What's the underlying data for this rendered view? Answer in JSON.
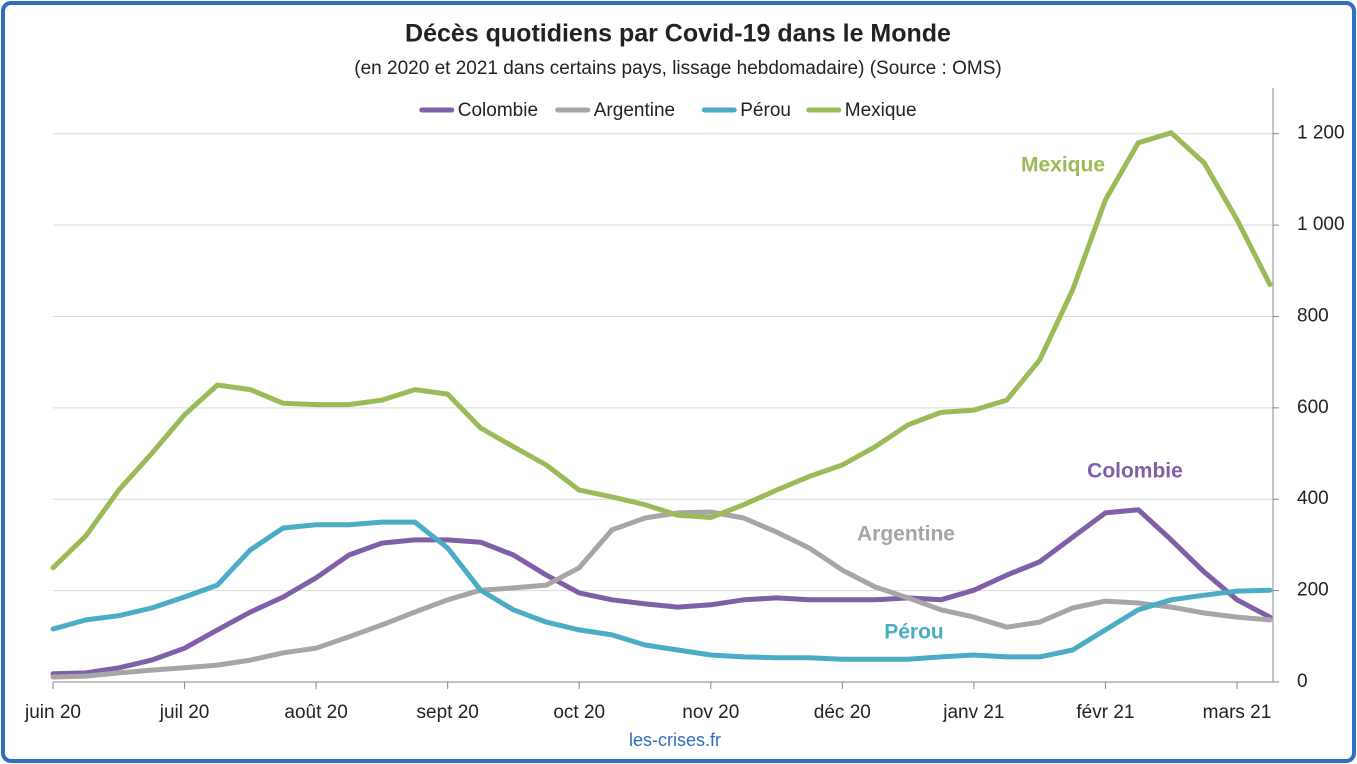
{
  "chart_data": {
    "type": "line",
    "title": "Décès quotidiens par Covid-19 dans le Monde",
    "subtitle": "(en 2020 et 2021 dans certains pays, lissage hebdomadaire) (Source : OMS)",
    "source": "les-crises.fr",
    "categories": [
      "juin 20",
      null,
      null,
      null,
      "juil 20",
      null,
      null,
      null,
      "août 20",
      null,
      null,
      null,
      "sept 20",
      null,
      null,
      null,
      "oct 20",
      null,
      null,
      null,
      "nov 20",
      null,
      null,
      null,
      "déc 20",
      null,
      null,
      null,
      "janv 21",
      null,
      null,
      null,
      "févr 21",
      null,
      null,
      null,
      "mars 21",
      null
    ],
    "ylim": [
      0,
      1300
    ],
    "yticks": [
      0,
      200,
      400,
      600,
      800,
      {
        "value": 1000,
        "label": "1 000"
      },
      {
        "value": 1200,
        "label": "1 200"
      }
    ],
    "y_axis_side": "right",
    "grid": true,
    "legend": "top",
    "series": [
      {
        "name": "Colombie",
        "color": "#7f5fa8",
        "values": [
          18,
          20,
          31,
          48,
          74,
          114,
          153,
          186,
          228,
          278,
          304,
          311,
          311,
          306,
          278,
          234,
          195,
          180,
          171,
          164,
          169,
          180,
          184,
          180,
          180,
          180,
          184,
          180,
          201,
          234,
          263,
          317,
          370,
          377,
          311,
          241,
          180,
          142
        ]
      },
      {
        "name": "Argentine",
        "color": "#a6a6a6",
        "values": [
          11,
          13,
          20,
          26,
          31,
          37,
          48,
          64,
          74,
          99,
          125,
          153,
          180,
          201,
          206,
          212,
          250,
          333,
          359,
          370,
          372,
          359,
          328,
          293,
          245,
          208,
          184,
          158,
          142,
          120,
          131,
          162,
          177,
          173,
          164,
          151,
          142,
          136
        ]
      },
      {
        "name": "Pérou",
        "color": "#4bacc6",
        "values": [
          116,
          136,
          145,
          162,
          186,
          212,
          289,
          337,
          344,
          344,
          350,
          350,
          293,
          201,
          158,
          131,
          114,
          103,
          81,
          70,
          59,
          55,
          53,
          53,
          50,
          50,
          50,
          55,
          59,
          55,
          55,
          70,
          114,
          158,
          180,
          190,
          199,
          201
        ]
      },
      {
        "name": "Mexique",
        "color": "#9bbb59",
        "values": [
          250,
          320,
          420,
          500,
          585,
          650,
          640,
          610,
          607,
          607,
          617,
          640,
          630,
          556,
          515,
          475,
          420,
          405,
          388,
          365,
          360,
          388,
          420,
          450,
          475,
          515,
          563,
          590,
          595,
          617,
          705,
          858,
          1055,
          1180,
          1202,
          1136,
          1012,
          870
        ]
      }
    ],
    "annotations": [
      {
        "text": "Mexique",
        "color": "#9bbb59"
      },
      {
        "text": "Colombie",
        "color": "#7f5fa8"
      },
      {
        "text": "Argentine",
        "color": "#a6a6a6"
      },
      {
        "text": "Pérou",
        "color": "#4bacc6"
      }
    ]
  }
}
